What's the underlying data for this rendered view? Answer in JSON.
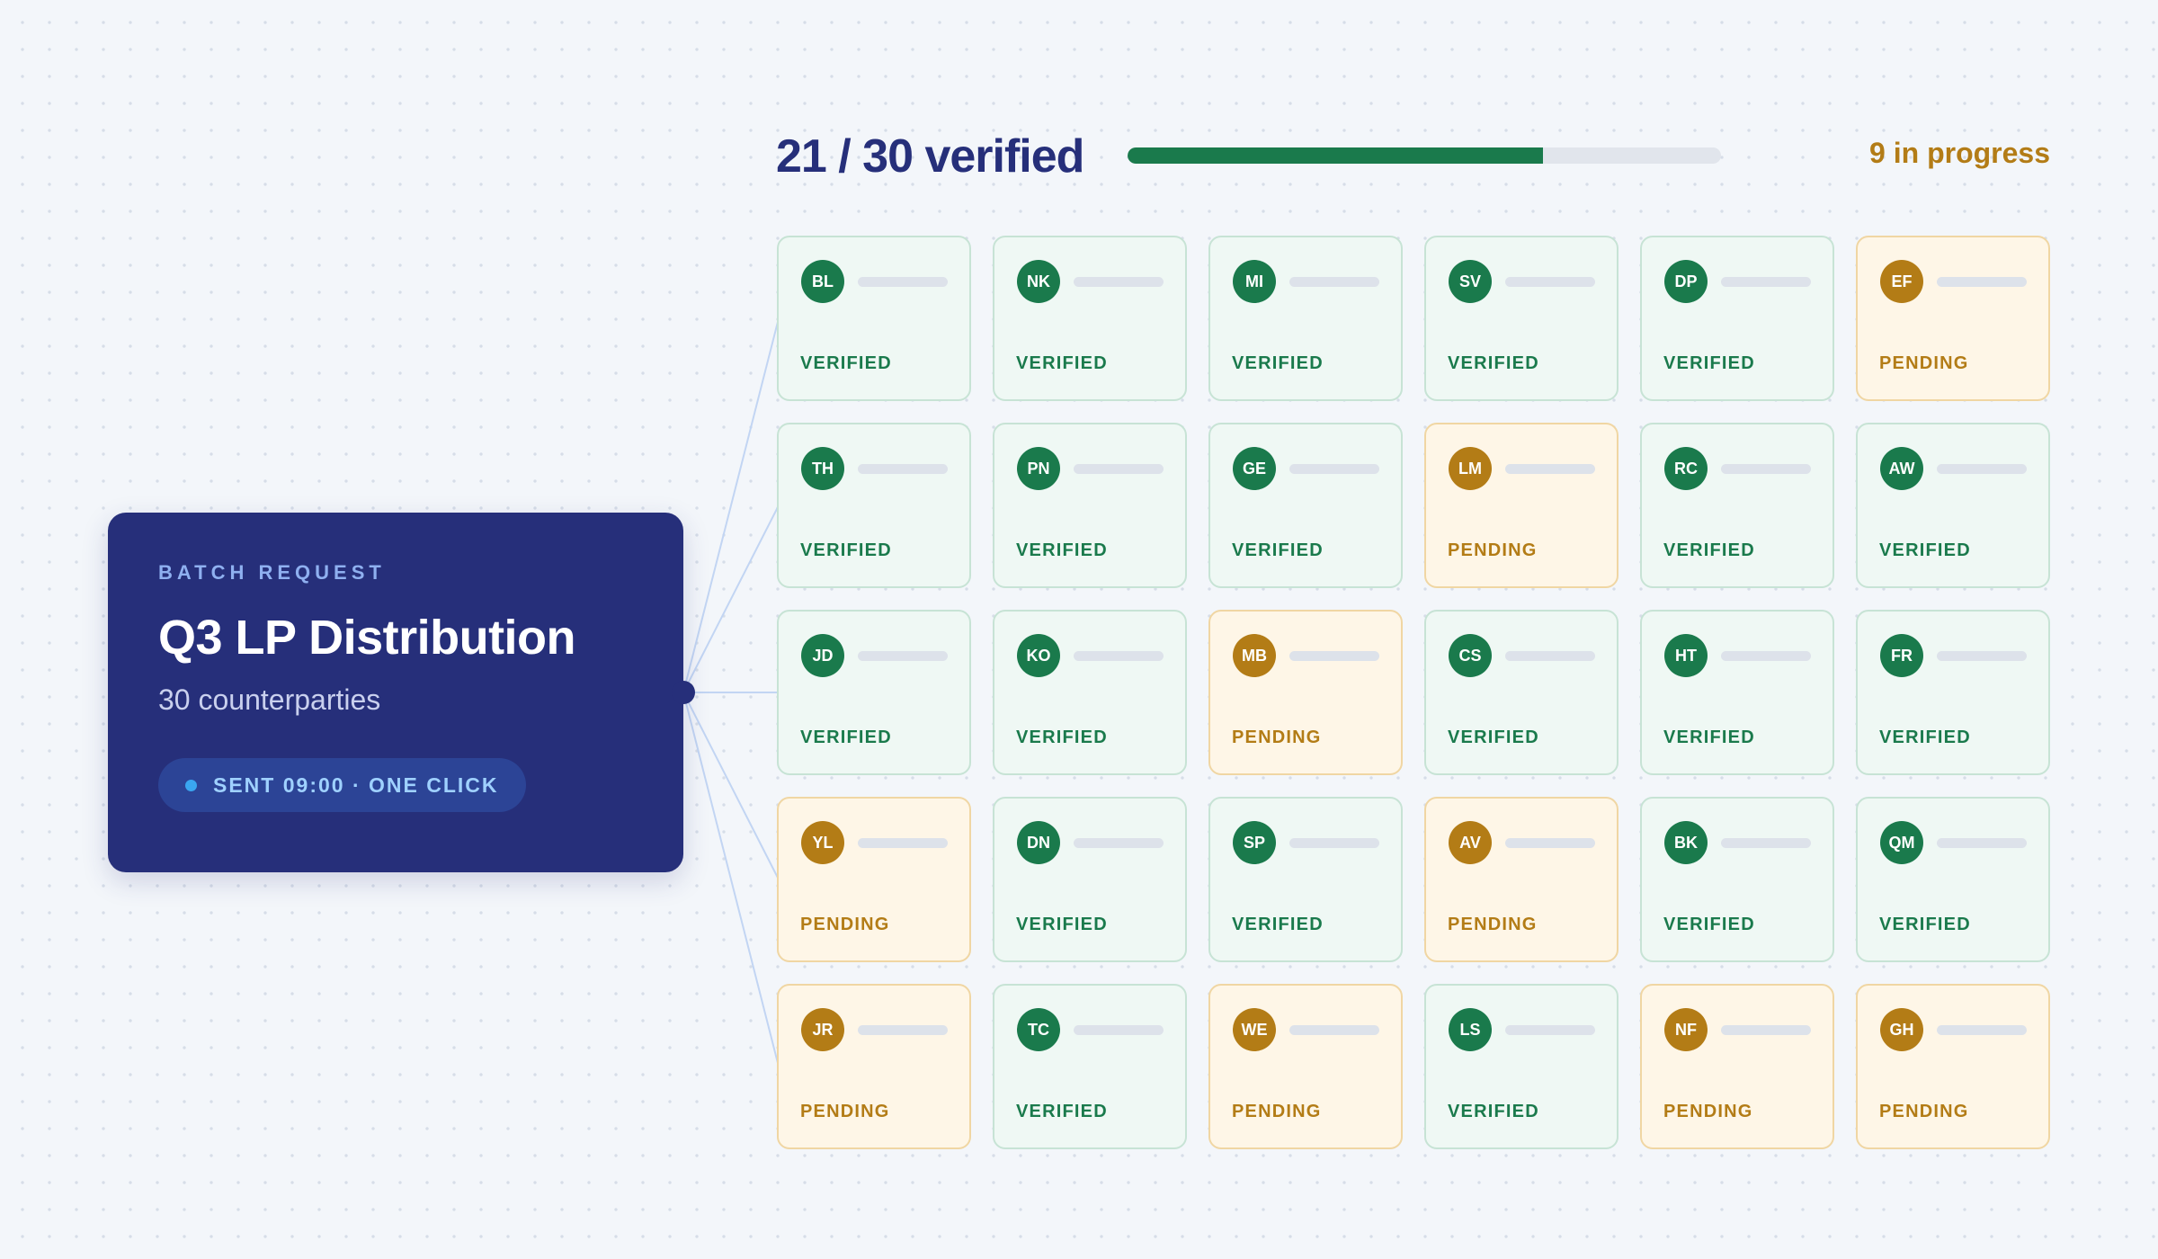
{
  "batch": {
    "eyebrow": "BATCH REQUEST",
    "title": "Q3 LP Distribution",
    "subtitle": "30 counterparties",
    "pill": "SENT 09:00 · ONE CLICK"
  },
  "progress": {
    "summary": "21 / 30 verified",
    "verified": 21,
    "total": 30,
    "fraction": 0.7,
    "in_progress_label": "9 in progress"
  },
  "colors": {
    "navy": "#262f7a",
    "verified": "#1a7a4c",
    "pending": "#b37c16",
    "connector": "#c2d5f3"
  },
  "counterparties": [
    {
      "initials": "BL",
      "status": "VERIFIED"
    },
    {
      "initials": "NK",
      "status": "VERIFIED"
    },
    {
      "initials": "MI",
      "status": "VERIFIED"
    },
    {
      "initials": "SV",
      "status": "VERIFIED"
    },
    {
      "initials": "DP",
      "status": "VERIFIED"
    },
    {
      "initials": "EF",
      "status": "PENDING"
    },
    {
      "initials": "TH",
      "status": "VERIFIED"
    },
    {
      "initials": "PN",
      "status": "VERIFIED"
    },
    {
      "initials": "GE",
      "status": "VERIFIED"
    },
    {
      "initials": "LM",
      "status": "PENDING"
    },
    {
      "initials": "RC",
      "status": "VERIFIED"
    },
    {
      "initials": "AW",
      "status": "VERIFIED"
    },
    {
      "initials": "JD",
      "status": "VERIFIED"
    },
    {
      "initials": "KO",
      "status": "VERIFIED"
    },
    {
      "initials": "MB",
      "status": "PENDING"
    },
    {
      "initials": "CS",
      "status": "VERIFIED"
    },
    {
      "initials": "HT",
      "status": "VERIFIED"
    },
    {
      "initials": "FR",
      "status": "VERIFIED"
    },
    {
      "initials": "YL",
      "status": "PENDING"
    },
    {
      "initials": "DN",
      "status": "VERIFIED"
    },
    {
      "initials": "SP",
      "status": "VERIFIED"
    },
    {
      "initials": "AV",
      "status": "PENDING"
    },
    {
      "initials": "BK",
      "status": "VERIFIED"
    },
    {
      "initials": "QM",
      "status": "VERIFIED"
    },
    {
      "initials": "JR",
      "status": "PENDING"
    },
    {
      "initials": "TC",
      "status": "VERIFIED"
    },
    {
      "initials": "WE",
      "status": "PENDING"
    },
    {
      "initials": "LS",
      "status": "VERIFIED"
    },
    {
      "initials": "NF",
      "status": "PENDING"
    },
    {
      "initials": "GH",
      "status": "PENDING"
    }
  ]
}
